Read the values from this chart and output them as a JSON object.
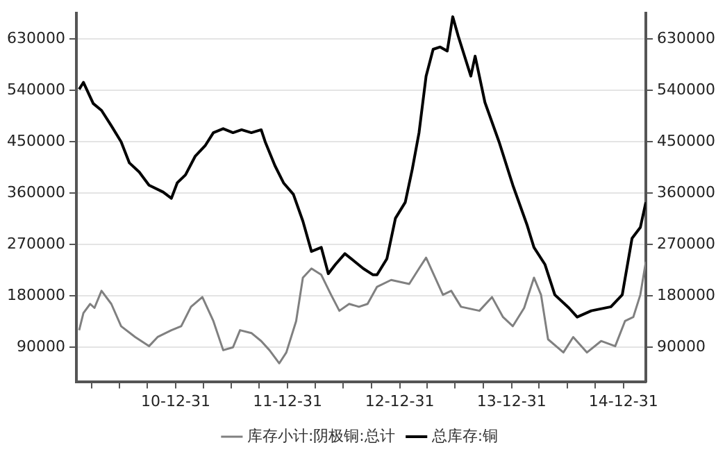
{
  "chart_data": {
    "type": "line",
    "series": [
      {
        "name": "库存小计:阴极铜:总计",
        "color": "#808080",
        "x": [
          "2010-02-19",
          "2010-03-05",
          "2010-03-27",
          "2010-04-10",
          "2010-05-03",
          "2010-06-04",
          "2010-07-06",
          "2010-08-21",
          "2010-10-05",
          "2010-11-02",
          "2010-12-17",
          "2011-01-18",
          "2011-02-19",
          "2011-03-28",
          "2011-05-03",
          "2011-06-04",
          "2011-07-06",
          "2011-07-29",
          "2011-09-04",
          "2011-10-06",
          "2011-11-02",
          "2011-12-04",
          "2011-12-27",
          "2012-01-28",
          "2012-02-19",
          "2012-03-18",
          "2012-04-19",
          "2012-05-21",
          "2012-06-17",
          "2012-07-19",
          "2012-08-20",
          "2012-09-17",
          "2012-10-18",
          "2012-12-03",
          "2013-01-31",
          "2013-03-04",
          "2013-03-27",
          "2013-05-21",
          "2013-06-17",
          "2013-07-19",
          "2013-09-17",
          "2013-10-28",
          "2013-12-03",
          "2014-01-04",
          "2014-02-10",
          "2014-03-14",
          "2014-04-06",
          "2014-04-29",
          "2014-06-18",
          "2014-07-20",
          "2014-09-03",
          "2014-10-19",
          "2014-12-04",
          "2015-01-05",
          "2015-02-01",
          "2015-02-24",
          "2015-03-14"
        ],
        "values": [
          120000,
          150000,
          166000,
          159000,
          189000,
          166000,
          127000,
          108000,
          92000,
          108000,
          120000,
          127000,
          161000,
          178000,
          136000,
          85000,
          90000,
          120000,
          115000,
          101000,
          85000,
          62000,
          81000,
          136000,
          212000,
          228000,
          217000,
          182000,
          154000,
          166000,
          161000,
          166000,
          196000,
          208000,
          201000,
          228000,
          247000,
          182000,
          189000,
          161000,
          154000,
          178000,
          143000,
          127000,
          159000,
          212000,
          182000,
          104000,
          81000,
          108000,
          81000,
          101000,
          92000,
          136000,
          143000,
          182000,
          240000
        ]
      },
      {
        "name": "总库存:铜",
        "color": "#000000",
        "x": [
          "2010-02-19",
          "2010-03-05",
          "2010-04-06",
          "2010-05-03",
          "2010-06-04",
          "2010-07-06",
          "2010-08-02",
          "2010-09-03",
          "2010-10-05",
          "2010-11-20",
          "2010-12-17",
          "2011-01-05",
          "2011-02-01",
          "2011-03-05",
          "2011-04-06",
          "2011-05-03",
          "2011-06-04",
          "2011-07-06",
          "2011-08-03",
          "2011-09-04",
          "2011-10-06",
          "2011-10-19",
          "2011-11-20",
          "2011-12-18",
          "2012-01-19",
          "2012-02-19",
          "2012-03-18",
          "2012-04-19",
          "2012-05-12",
          "2012-06-04",
          "2012-07-05",
          "2012-08-02",
          "2012-09-03",
          "2012-10-05",
          "2012-10-18",
          "2012-11-19",
          "2012-12-17",
          "2013-01-18",
          "2013-02-10",
          "2013-03-04",
          "2013-03-27",
          "2013-04-19",
          "2013-05-12",
          "2013-06-04",
          "2013-06-22",
          "2013-07-10",
          "2013-08-20",
          "2013-09-03",
          "2013-10-05",
          "2013-11-20",
          "2014-01-04",
          "2014-02-19",
          "2014-03-14",
          "2014-04-19",
          "2014-05-21",
          "2014-07-06",
          "2014-08-02",
          "2014-09-17",
          "2014-11-20",
          "2014-12-27",
          "2015-01-28",
          "2015-02-24",
          "2015-03-14"
        ],
        "values": [
          542000,
          554000,
          517000,
          505000,
          478000,
          450000,
          413000,
          397000,
          374000,
          362000,
          351000,
          378000,
          392000,
          425000,
          443000,
          466000,
          473000,
          466000,
          471000,
          466000,
          471000,
          450000,
          408000,
          378000,
          358000,
          311000,
          258000,
          265000,
          219000,
          235000,
          254000,
          242000,
          228000,
          217000,
          217000,
          245000,
          316000,
          344000,
          402000,
          466000,
          565000,
          612000,
          616000,
          609000,
          669000,
          635000,
          565000,
          600000,
          519000,
          450000,
          374000,
          305000,
          265000,
          235000,
          182000,
          159000,
          143000,
          154000,
          161000,
          182000,
          281000,
          300000,
          344000
        ]
      }
    ],
    "xlim": [
      "2010-02-10",
      "2015-03-14"
    ],
    "xticks": [
      {
        "value": "2010-03-31",
        "label": null
      },
      {
        "value": "2010-06-30",
        "label": null
      },
      {
        "value": "2010-09-30",
        "label": null
      },
      {
        "value": "2010-12-31",
        "label": "10-12-31"
      },
      {
        "value": "2011-03-31",
        "label": null
      },
      {
        "value": "2011-06-30",
        "label": null
      },
      {
        "value": "2011-09-30",
        "label": null
      },
      {
        "value": "2011-12-31",
        "label": "11-12-31"
      },
      {
        "value": "2012-03-31",
        "label": null
      },
      {
        "value": "2012-06-30",
        "label": null
      },
      {
        "value": "2012-09-30",
        "label": null
      },
      {
        "value": "2012-12-31",
        "label": "12-12-31"
      },
      {
        "value": "2013-03-31",
        "label": null
      },
      {
        "value": "2013-06-30",
        "label": null
      },
      {
        "value": "2013-09-30",
        "label": null
      },
      {
        "value": "2013-12-31",
        "label": "13-12-31"
      },
      {
        "value": "2014-03-31",
        "label": null
      },
      {
        "value": "2014-06-30",
        "label": null
      },
      {
        "value": "2014-09-30",
        "label": null
      },
      {
        "value": "2014-12-31",
        "label": "14-12-31"
      }
    ],
    "ylim": [
      30000,
      675000
    ],
    "yticks": [
      90000,
      180000,
      270000,
      360000,
      450000,
      540000,
      630000
    ],
    "y2lim": [
      30000,
      675000
    ],
    "y2ticks": [
      90000,
      180000,
      270000,
      360000,
      450000,
      540000,
      630000
    ],
    "grid": "y",
    "legend": "bottom",
    "marker": "none",
    "line_style": "solid"
  }
}
